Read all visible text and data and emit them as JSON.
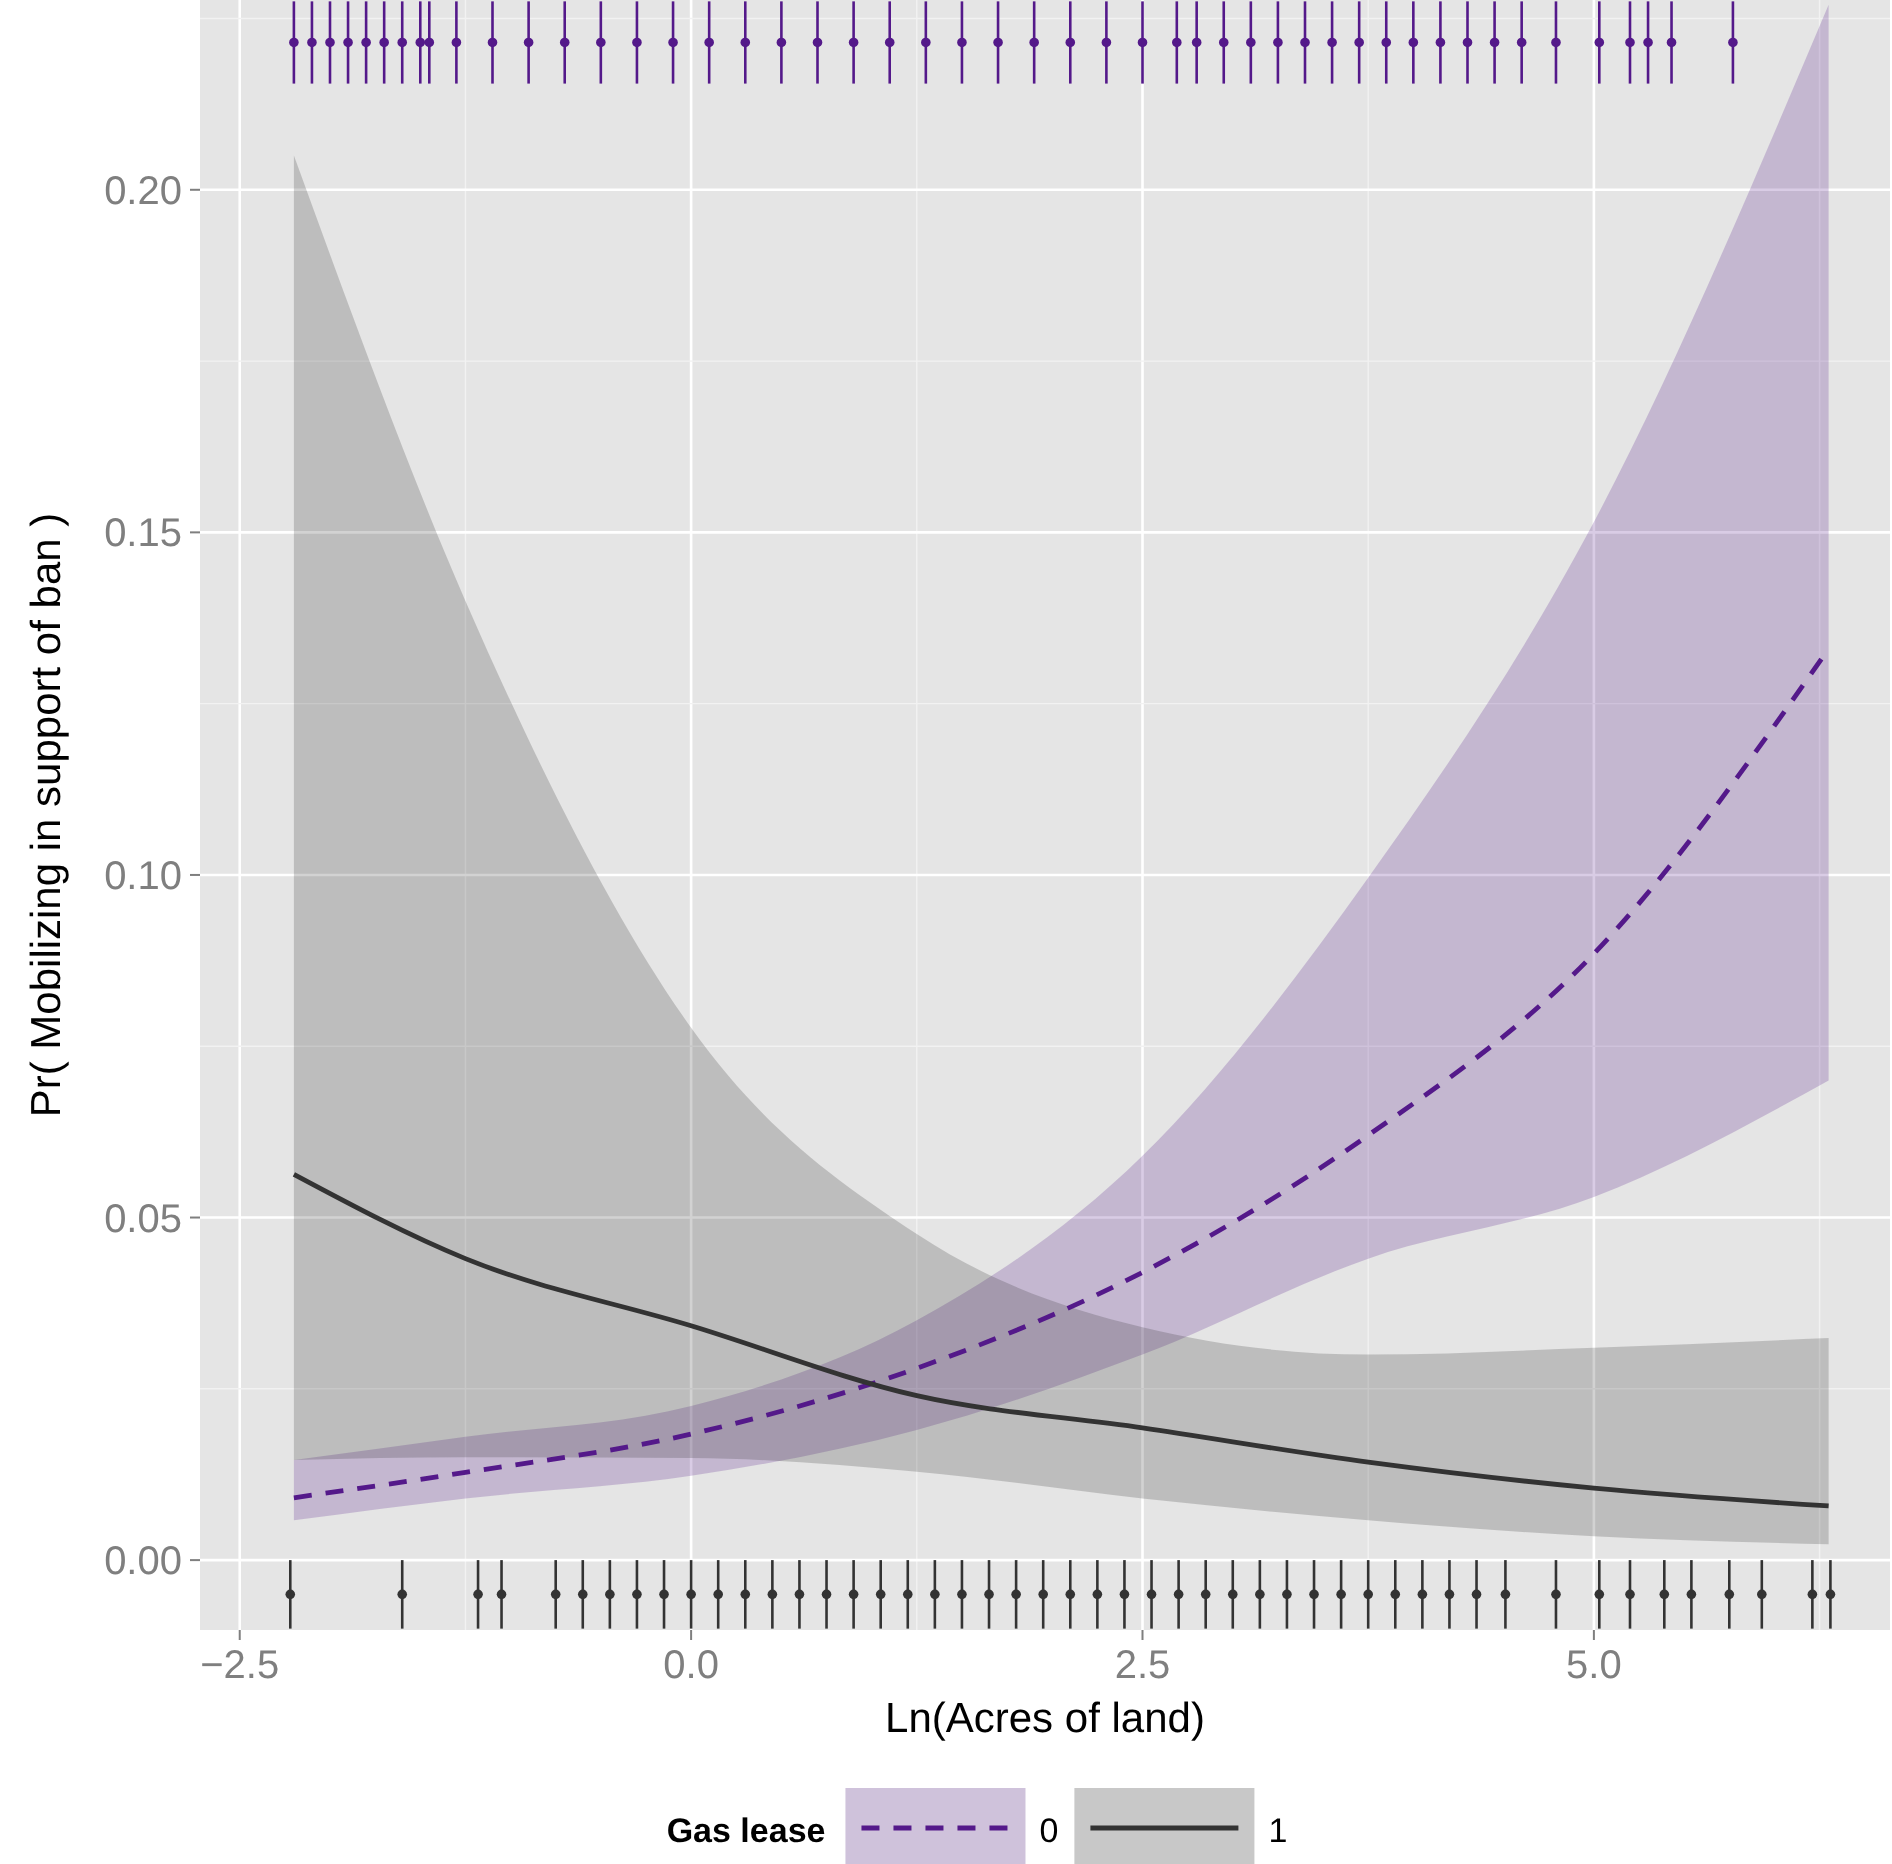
{
  "chart_data": {
    "type": "line",
    "xlabel": "Ln(Acres of land)",
    "ylabel": "Pr( Mobilizing in support of ban )",
    "legend_title": "Gas lease",
    "legend": "bottom",
    "grid": true,
    "xlim": [
      -2.72,
      6.64
    ],
    "xticks": [
      {
        "value": -2.5,
        "label": "−2.5"
      },
      {
        "value": 0,
        "label": "0.0"
      },
      {
        "value": 2.5,
        "label": "2.5"
      },
      {
        "value": 5,
        "label": "5.0"
      }
    ],
    "ylim": [
      -0.0102,
      0.2277
    ],
    "yticks": [
      {
        "value": 0,
        "label": "0.00"
      },
      {
        "value": 0.05,
        "label": "0.05"
      },
      {
        "value": 0.1,
        "label": "0.10"
      },
      {
        "value": 0.15,
        "label": "0.15"
      },
      {
        "value": 0.2,
        "label": "0.20"
      }
    ],
    "series": [
      {
        "name": "0",
        "color": "#54198a",
        "line_style": "dashed",
        "x": [
          -2.2,
          -1.25,
          0,
          1.25,
          2.5,
          3.75,
          5,
          6.3
        ],
        "values": [
          0.0091,
          0.0128,
          0.0184,
          0.028,
          0.042,
          0.062,
          0.0885,
          0.133
        ],
        "lower": [
          0.0058,
          0.009,
          0.0123,
          0.019,
          0.03,
          0.044,
          0.053,
          0.07
        ],
        "upper": [
          0.0146,
          0.018,
          0.0225,
          0.035,
          0.059,
          0.0996,
          0.1515,
          0.227
        ]
      },
      {
        "name": "1",
        "color": "#333333",
        "line_style": "solid",
        "x": [
          -2.2,
          -1.25,
          0,
          1.25,
          2.5,
          3.75,
          5,
          6.3
        ],
        "values": [
          0.0563,
          0.044,
          0.0342,
          0.024,
          0.0193,
          0.0143,
          0.0105,
          0.0079
        ],
        "lower": [
          0.0146,
          0.015,
          0.0149,
          0.0129,
          0.009,
          0.0058,
          0.0035,
          0.0023
        ],
        "upper": [
          0.205,
          0.14,
          0.0777,
          0.0476,
          0.034,
          0.03,
          0.031,
          0.0324
        ]
      },
      {
        "type": "scatter",
        "color": "#54198a",
        "errors": [
          0.006,
          0.006,
          0.006,
          0.006,
          0.006,
          0.006,
          0.006,
          0.006,
          0.006,
          0.006,
          0.006,
          0.006,
          0.006,
          0.006,
          0.006,
          0.006,
          0.006,
          0.006,
          0.006,
          0.006,
          0.006,
          0.006,
          0.006,
          0.006,
          0.006,
          0.006,
          0.006,
          0.006,
          0.006,
          0.006,
          0.006,
          0.006,
          0.006,
          0.006,
          0.006,
          0.006,
          0.006,
          0.006,
          0.006,
          0.006,
          0.006,
          0.006,
          0.006,
          0.006,
          0.006,
          0.006,
          0.006,
          0.006,
          0.006
        ],
        "x": [
          -2.2,
          -2.1,
          -2.0,
          -1.9,
          -1.8,
          -1.7,
          -1.6,
          -1.5,
          -1.45,
          -1.3,
          -1.1,
          -0.9,
          -0.7,
          -0.5,
          -0.3,
          -0.1,
          0.1,
          0.3,
          0.5,
          0.7,
          0.9,
          1.1,
          1.3,
          1.5,
          1.7,
          1.9,
          2.1,
          2.3,
          2.5,
          2.69,
          2.8,
          2.95,
          3.1,
          3.25,
          3.4,
          3.55,
          3.7,
          3.85,
          4.0,
          4.15,
          4.3,
          4.45,
          4.6,
          4.79,
          5.03,
          5.2,
          5.3,
          5.43,
          5.77
        ],
        "values": [
          0.2215,
          0.2215,
          0.2215,
          0.2215,
          0.2215,
          0.2215,
          0.2215,
          0.2215,
          0.2215,
          0.2215,
          0.2215,
          0.2215,
          0.2215,
          0.2215,
          0.2215,
          0.2215,
          0.2215,
          0.2215,
          0.2215,
          0.2215,
          0.2215,
          0.2215,
          0.2215,
          0.2215,
          0.2215,
          0.2215,
          0.2215,
          0.2215,
          0.2215,
          0.2215,
          0.2215,
          0.2215,
          0.2215,
          0.2215,
          0.2215,
          0.2215,
          0.2215,
          0.2215,
          0.2215,
          0.2215,
          0.2215,
          0.2215,
          0.2215,
          0.2215,
          0.2215,
          0.2215,
          0.2215,
          0.2215,
          0.2215
        ]
      },
      {
        "type": "scatter",
        "color": "#333333",
        "errors": [
          0.005,
          0.005,
          0.005,
          0.005,
          0.005,
          0.005,
          0.005,
          0.005,
          0.005,
          0.005,
          0.005,
          0.005,
          0.005,
          0.005,
          0.005,
          0.005,
          0.005,
          0.005,
          0.005,
          0.005,
          0.005,
          0.005,
          0.005,
          0.005,
          0.005,
          0.005,
          0.005,
          0.005,
          0.005,
          0.005,
          0.005,
          0.005,
          0.005,
          0.005,
          0.005,
          0.005,
          0.005,
          0.005,
          0.005,
          0.005,
          0.005,
          0.005,
          0.005,
          0.005,
          0.005,
          0.005,
          0.005,
          0.005,
          0.005
        ],
        "x": [
          -2.22,
          -1.6,
          -1.18,
          -1.05,
          -0.75,
          -0.6,
          -0.45,
          -0.3,
          -0.15,
          0,
          0.15,
          0.3,
          0.45,
          0.6,
          0.75,
          0.9,
          1.05,
          1.2,
          1.35,
          1.5,
          1.65,
          1.8,
          1.95,
          2.1,
          2.25,
          2.4,
          2.55,
          2.7,
          2.85,
          3.0,
          3.15,
          3.3,
          3.45,
          3.6,
          3.75,
          3.9,
          4.05,
          4.2,
          4.35,
          4.51,
          4.79,
          5.03,
          5.2,
          5.39,
          5.54,
          5.75,
          5.93,
          6.21,
          6.31
        ],
        "values": [
          -0.005,
          -0.005,
          -0.005,
          -0.005,
          -0.005,
          -0.005,
          -0.005,
          -0.005,
          -0.005,
          -0.005,
          -0.005,
          -0.005,
          -0.005,
          -0.005,
          -0.005,
          -0.005,
          -0.005,
          -0.005,
          -0.005,
          -0.005,
          -0.005,
          -0.005,
          -0.005,
          -0.005,
          -0.005,
          -0.005,
          -0.005,
          -0.005,
          -0.005,
          -0.005,
          -0.005,
          -0.005,
          -0.005,
          -0.005,
          -0.005,
          -0.005,
          -0.005,
          -0.005,
          -0.005,
          -0.005,
          -0.005,
          -0.005,
          -0.005,
          -0.005,
          -0.005,
          -0.005,
          -0.005,
          -0.005,
          -0.005
        ]
      }
    ]
  }
}
